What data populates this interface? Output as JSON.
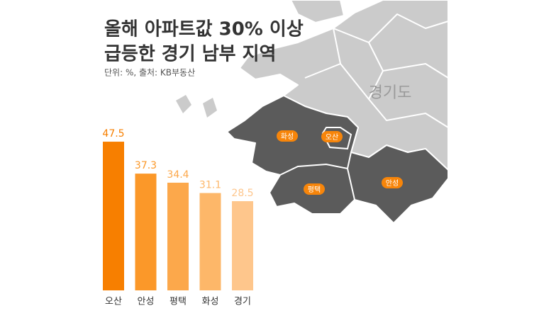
{
  "chart_data": {
    "type": "bar",
    "title": [
      "올해 아파트값 30% 이상",
      "급등한 경기 남부 지역"
    ],
    "subtitle": "단위: %, 출처: KB부동산",
    "categories": [
      "오산",
      "안성",
      "평택",
      "화성",
      "경기"
    ],
    "values": [
      47.5,
      37.3,
      34.4,
      31.1,
      28.5
    ],
    "colors": [
      "#f77f00",
      "#fb9829",
      "#fca84b",
      "#fdb769",
      "#fec68c"
    ]
  },
  "map": {
    "region": "경기도",
    "labels": [
      "화성",
      "오산",
      "평택",
      "안성"
    ]
  }
}
